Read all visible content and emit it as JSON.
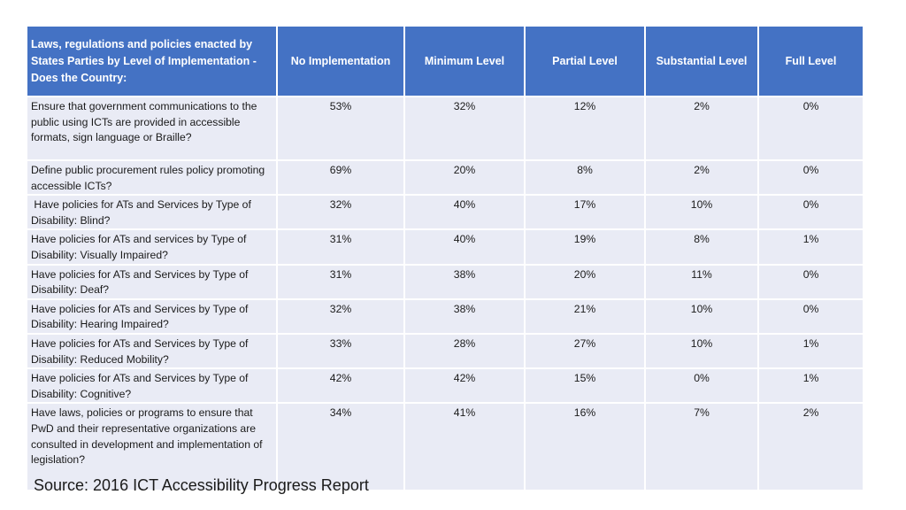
{
  "table": {
    "headers": [
      "Laws, regulations and policies enacted by States Parties by Level of Implementation - Does the Country:",
      "No Implementation",
      "Minimum Level",
      "Partial Level",
      "Substantial Level",
      "Full Level"
    ],
    "rows": [
      {
        "label": "Ensure that government communications to the public using ICTs are provided in accessible formats, sign language or Braille?",
        "values": [
          "53%",
          "32%",
          "12%",
          "2%",
          "0%"
        ]
      },
      {
        "label": "Define public procurement rules policy promoting accessible ICTs?",
        "values": [
          "69%",
          "20%",
          "8%",
          "2%",
          "0%"
        ]
      },
      {
        "label": " Have policies for ATs and Services by Type of Disability: Blind?",
        "values": [
          "32%",
          "40%",
          "17%",
          "10%",
          "0%"
        ]
      },
      {
        "label": "Have policies for ATs and services by Type of Disability: Visually Impaired?",
        "values": [
          "31%",
          "40%",
          "19%",
          "8%",
          "1%"
        ]
      },
      {
        "label": "Have policies for ATs and Services by Type of Disability: Deaf?",
        "values": [
          "31%",
          "38%",
          "20%",
          "11%",
          "0%"
        ]
      },
      {
        "label": "Have policies for ATs and Services by Type of Disability: Hearing Impaired?",
        "values": [
          "32%",
          "38%",
          "21%",
          "10%",
          "0%"
        ]
      },
      {
        "label": "Have policies for ATs and Services by Type of Disability: Reduced Mobility?",
        "values": [
          "33%",
          "28%",
          "27%",
          "10%",
          "1%"
        ]
      },
      {
        "label": "Have policies for ATs and Services by Type of Disability: Cognitive?",
        "values": [
          "42%",
          "42%",
          "15%",
          "0%",
          "1%"
        ]
      },
      {
        "label": "Have laws, policies or programs to ensure that PwD and their representative organizations are consulted in development and implementation of legislation?",
        "values": [
          "34%",
          "41%",
          "16%",
          "7%",
          "2%"
        ]
      }
    ]
  },
  "source": "Source: 2016 ICT Accessibility Progress Report",
  "colors": {
    "header_bg": "#4472c4",
    "row_bg": "#e9ebf5"
  }
}
